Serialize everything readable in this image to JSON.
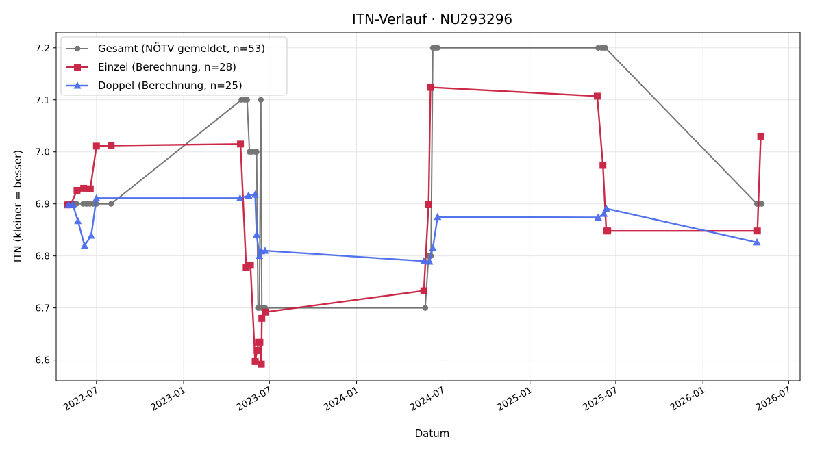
{
  "chart_data": {
    "type": "line",
    "title": "ITN-Verlauf · NU293296",
    "xlabel": "Datum",
    "ylabel": "ITN  (kleiner = besser)",
    "x_scale": "date",
    "xlim": [
      "2022-04-07",
      "2026-07-25"
    ],
    "ylim": [
      6.56,
      7.23
    ],
    "x_ticks": [
      "2022-07-01",
      "2023-01-01",
      "2023-07-01",
      "2024-01-01",
      "2024-07-01",
      "2025-01-01",
      "2025-07-01",
      "2026-01-01",
      "2026-07-01"
    ],
    "x_tick_labels": [
      "2022-07",
      "2023-01",
      "2023-07",
      "2024-01",
      "2024-07",
      "2025-01",
      "2025-07",
      "2026-01",
      "2026-07"
    ],
    "y_ticks": [
      6.6,
      6.7,
      6.8,
      6.9,
      7.0,
      7.1,
      7.2
    ],
    "y_tick_labels": [
      "6.6",
      "6.7",
      "6.8",
      "6.9",
      "7.0",
      "7.1",
      "7.2"
    ],
    "grid": true,
    "legend_position": "top-left",
    "series": [
      {
        "name": "Gesamt (NÖTV gemeldet, n=53)",
        "color": "#444444",
        "marker": "circle",
        "points": [
          [
            "2022-05-01",
            6.9
          ],
          [
            "2022-05-07",
            6.9
          ],
          [
            "2022-05-13",
            6.9
          ],
          [
            "2022-05-20",
            6.9
          ],
          [
            "2022-06-03",
            6.9
          ],
          [
            "2022-06-10",
            6.9
          ],
          [
            "2022-06-17",
            6.9
          ],
          [
            "2022-06-24",
            6.9
          ],
          [
            "2022-07-01",
            6.9
          ],
          [
            "2022-08-01",
            6.9
          ],
          [
            "2023-05-03",
            7.1
          ],
          [
            "2023-05-10",
            7.1
          ],
          [
            "2023-05-15",
            7.1
          ],
          [
            "2023-05-20",
            7.0
          ],
          [
            "2023-05-25",
            7.0
          ],
          [
            "2023-06-01",
            7.0
          ],
          [
            "2023-06-04",
            7.0
          ],
          [
            "2023-06-07",
            6.7
          ],
          [
            "2023-06-10",
            6.7
          ],
          [
            "2023-06-13",
            7.1
          ],
          [
            "2023-06-15",
            6.7
          ],
          [
            "2023-06-18",
            6.7
          ],
          [
            "2023-06-22",
            6.7
          ],
          [
            "2024-05-25",
            6.7
          ],
          [
            "2024-06-01",
            6.8
          ],
          [
            "2024-06-06",
            6.8
          ],
          [
            "2024-06-10",
            7.2
          ],
          [
            "2024-06-15",
            7.2
          ],
          [
            "2024-06-20",
            7.2
          ],
          [
            "2025-05-25",
            7.2
          ],
          [
            "2025-06-01",
            7.2
          ],
          [
            "2025-06-05",
            7.2
          ],
          [
            "2025-06-09",
            7.2
          ],
          [
            "2026-04-25",
            6.9
          ],
          [
            "2026-05-01",
            6.9
          ],
          [
            "2026-05-05",
            6.9
          ]
        ]
      },
      {
        "name": "Einzel (Berechnung, n=28)",
        "color": "#c81e3e",
        "marker": "square",
        "points": [
          [
            "2022-05-01",
            6.898
          ],
          [
            "2022-05-08",
            6.899
          ],
          [
            "2022-05-21",
            6.926
          ],
          [
            "2022-06-04",
            6.93
          ],
          [
            "2022-06-18",
            6.929
          ],
          [
            "2022-07-01",
            7.011
          ],
          [
            "2022-08-01",
            7.012
          ],
          [
            "2023-05-01",
            7.015
          ],
          [
            "2023-05-13",
            6.778
          ],
          [
            "2023-05-22",
            6.782
          ],
          [
            "2023-06-01",
            6.597
          ],
          [
            "2023-06-05",
            6.618
          ],
          [
            "2023-06-08",
            6.634
          ],
          [
            "2023-06-11",
            6.634
          ],
          [
            "2023-06-14",
            6.592
          ],
          [
            "2023-06-15",
            6.68
          ],
          [
            "2023-06-22",
            6.692
          ],
          [
            "2024-05-22",
            6.733
          ],
          [
            "2024-06-01",
            6.899
          ],
          [
            "2024-06-05",
            7.124
          ],
          [
            "2025-05-23",
            7.107
          ],
          [
            "2025-06-04",
            6.974
          ],
          [
            "2025-06-11",
            6.848
          ],
          [
            "2025-06-14",
            6.848
          ],
          [
            "2026-04-26",
            6.848
          ],
          [
            "2026-05-03",
            7.03
          ]
        ]
      },
      {
        "name": "Doppel (Berechnung, n=25)",
        "color": "#4a6ced",
        "marker": "triangle",
        "points": [
          [
            "2022-05-03",
            6.899
          ],
          [
            "2022-05-12",
            6.899
          ],
          [
            "2022-05-23",
            6.867
          ],
          [
            "2022-06-06",
            6.82
          ],
          [
            "2022-06-20",
            6.839
          ],
          [
            "2022-07-01",
            6.911
          ],
          [
            "2023-04-30",
            6.911
          ],
          [
            "2023-05-18",
            6.916
          ],
          [
            "2023-06-01",
            6.918
          ],
          [
            "2023-06-04",
            6.841
          ],
          [
            "2023-06-10",
            6.8
          ],
          [
            "2023-06-14",
            6.809
          ],
          [
            "2023-06-22",
            6.81
          ],
          [
            "2024-05-22",
            6.79
          ],
          [
            "2024-06-03",
            6.789
          ],
          [
            "2024-06-10",
            6.815
          ],
          [
            "2024-06-20",
            6.875
          ],
          [
            "2025-05-25",
            6.874
          ],
          [
            "2025-06-06",
            6.881
          ],
          [
            "2025-06-11",
            6.891
          ],
          [
            "2026-04-25",
            6.826
          ]
        ]
      }
    ]
  }
}
